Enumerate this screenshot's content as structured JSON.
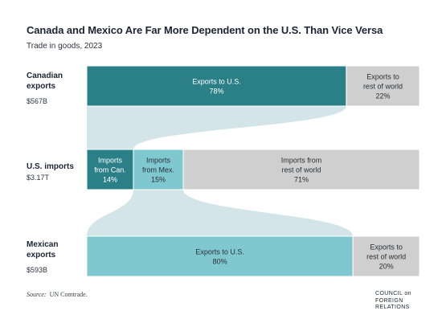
{
  "title": "Canada and Mexico Are Far More Dependent on the U.S. Than Vice Versa",
  "subtitle": "Trade in goods, 2023",
  "source_label": "Source:",
  "source_text": "UN Comtrade.",
  "logo_text": "COUNCIL on\nFOREIGN\nRELATIONS",
  "colors": {
    "dark_teal": "#2b7f87",
    "light_teal": "#7fc8d0",
    "gray": "#cfcfcf",
    "flow": "#d3e5e9"
  },
  "chart_data": {
    "type": "bar",
    "orientation": "stacked-horizontal-100",
    "rows": [
      {
        "label": "Canadian\nexports",
        "total": "$567B",
        "segments": [
          {
            "label": "Exports to U.S.",
            "value": 78,
            "value_text": "78%",
            "color": "dark_teal"
          },
          {
            "label": "Exports to\nrest of world",
            "value": 22,
            "value_text": "22%",
            "color": "gray"
          }
        ]
      },
      {
        "label": "U.S. imports",
        "total": "$3.17T",
        "segments": [
          {
            "label": "Imports\nfrom Can.",
            "value": 14,
            "value_text": "14%",
            "color": "dark_teal"
          },
          {
            "label": "Imports\nfrom Mex.",
            "value": 15,
            "value_text": "15%",
            "color": "light_teal"
          },
          {
            "label": "Imports from\nrest of world",
            "value": 71,
            "value_text": "71%",
            "color": "gray"
          }
        ]
      },
      {
        "label": "Mexican\nexports",
        "total": "$593B",
        "segments": [
          {
            "label": "Exports to U.S.",
            "value": 80,
            "value_text": "80%",
            "color": "light_teal"
          },
          {
            "label": "Exports to\nrest of world",
            "value": 20,
            "value_text": "20%",
            "color": "gray"
          }
        ]
      }
    ],
    "flows": [
      {
        "from_row": 0,
        "from_segment": 0,
        "to_row": 1,
        "to_segment": 0
      },
      {
        "from_row": 1,
        "from_segment": 1,
        "to_row": 2,
        "to_segment": 0
      }
    ]
  }
}
